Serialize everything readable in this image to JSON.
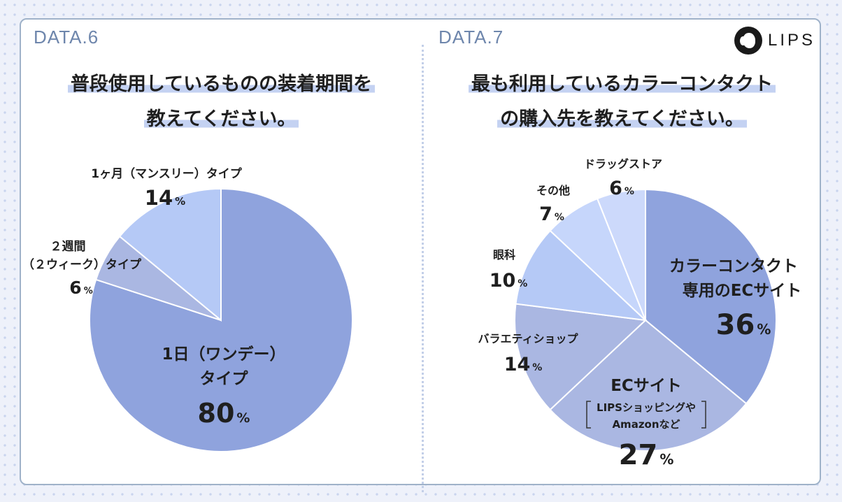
{
  "panels": [
    {
      "data_label": "DATA.6",
      "title_lines": [
        "普段使用しているものの装着期間を",
        "教えてください。"
      ]
    },
    {
      "data_label": "DATA.7",
      "title_lines": [
        "最も利用しているカラーコンタクト",
        "の購入先を教えてください。"
      ]
    }
  ],
  "logo": {
    "text": "LIPS",
    "icon": "lips-logo-icon"
  },
  "colors": {
    "dark": "#8fa3dd",
    "mid": "#aab7e2",
    "light": "#b5c9f6",
    "lighter": "#c6d6fb",
    "pale": "#ccd9fb"
  },
  "chart_data": [
    {
      "type": "pie",
      "title": "普段使用しているものの装着期間を教えてください。",
      "unit": "%",
      "slices": [
        {
          "label_lines": [
            "1日（ワンデー）",
            "タイプ"
          ],
          "value": 80,
          "color": "#8fa3dd",
          "pct": "80"
        },
        {
          "label_lines": [
            "２週間",
            "（２ウィーク）タイプ"
          ],
          "value": 6,
          "color": "#aab7e2",
          "pct": "6"
        },
        {
          "label_lines": [
            "1ヶ月（マンスリー）タイプ"
          ],
          "value": 14,
          "color": "#b5c9f6",
          "pct": "14"
        }
      ]
    },
    {
      "type": "pie",
      "title": "最も利用しているカラーコンタクトの購入先を教えてください。",
      "unit": "%",
      "slices": [
        {
          "label_lines": [
            "カラーコンタクト",
            "専用のECサイト"
          ],
          "value": 36,
          "color": "#8fa3dd",
          "pct": "36"
        },
        {
          "label_lines": [
            "ECサイト"
          ],
          "note_lines": [
            "LIPSショッピングや",
            "Amazonなど"
          ],
          "value": 27,
          "color": "#aab7e2",
          "pct": "27"
        },
        {
          "label_lines": [
            "バラエティショップ"
          ],
          "value": 14,
          "color": "#aab7e2",
          "pct": "14"
        },
        {
          "label_lines": [
            "眼科"
          ],
          "value": 10,
          "color": "#b5c9f6",
          "pct": "10"
        },
        {
          "label_lines": [
            "その他"
          ],
          "value": 7,
          "color": "#c6d6fb",
          "pct": "7"
        },
        {
          "label_lines": [
            "ドラッグストア"
          ],
          "value": 6,
          "color": "#ccd9fb",
          "pct": "6"
        }
      ]
    }
  ]
}
